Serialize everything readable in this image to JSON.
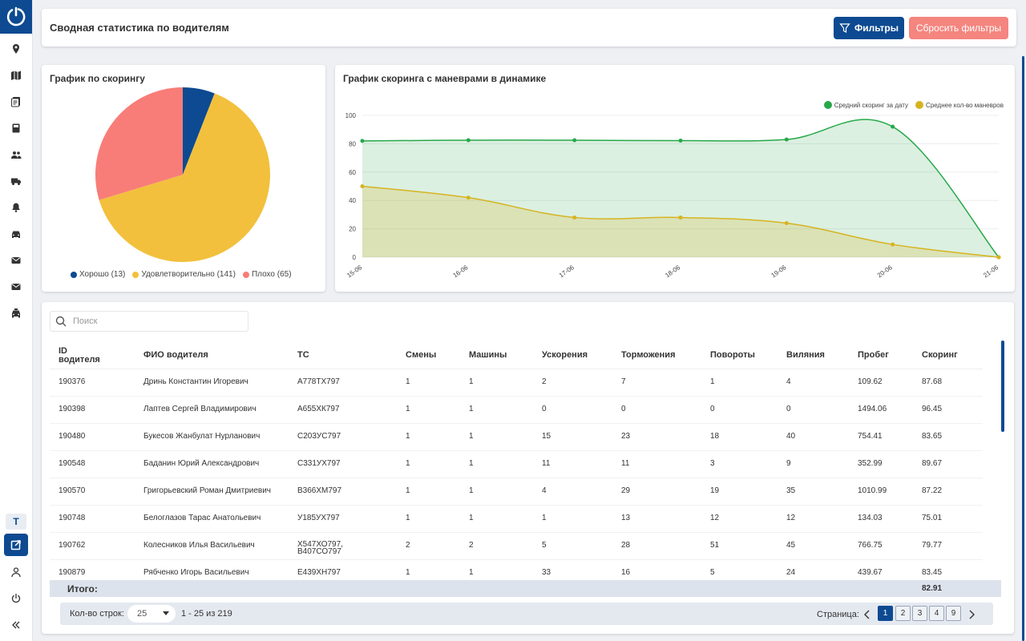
{
  "header": {
    "title": "Сводная статистика по водителям",
    "filter_label": "Фильтры",
    "reset_label": "Сбросить фильтры"
  },
  "sidebar": {
    "items": [
      "location-icon",
      "map-icon",
      "documents-icon",
      "book-icon",
      "users-icon",
      "truck-icon",
      "bell-icon",
      "car-icon",
      "mail-icon",
      "mail-icon",
      "taxi-icon"
    ],
    "tenant_letter": "T",
    "bottom_items": [
      "external-link-icon",
      "user-icon",
      "power-icon",
      "collapse-icon"
    ]
  },
  "pie": {
    "title": "График по скорингу",
    "legend": [
      "Хорошо (13)",
      "Удовлетворительно (141)",
      "Плохо (65)"
    ],
    "slices": [
      {
        "value": 13,
        "color": "#0d4a91"
      },
      {
        "value": 141,
        "color": "#f2c03c"
      },
      {
        "value": 65,
        "color": "#f87d78"
      }
    ]
  },
  "line": {
    "title": "График скоринга с маневрами в динамике",
    "legend": [
      "Средний скоринг за дату",
      "Среднее кол-во маневров"
    ]
  },
  "chart_data": [
    {
      "type": "pie",
      "title": "График по скорингу",
      "categories": [
        "Хорошо (13)",
        "Удовлетворительно (141)",
        "Плохо (65)"
      ],
      "values": [
        13,
        141,
        65
      ],
      "colors": [
        "#0d4a91",
        "#f2c03c",
        "#f87d78"
      ],
      "legend": "bottom"
    },
    {
      "type": "area",
      "title": "График скоринга с маневрами в динамике",
      "x": [
        "15-06",
        "16-06",
        "17-06",
        "18-06",
        "19-06",
        "20-06",
        "21-06"
      ],
      "series": [
        {
          "name": "Средний скоринг за дату",
          "values": [
            82,
            82.5,
            82.5,
            82.2,
            83,
            92,
            0
          ],
          "color": "#27a84a"
        },
        {
          "name": "Среднее кол-во маневров",
          "values": [
            50,
            42,
            28,
            28,
            24,
            9,
            0
          ],
          "color": "#d7b321"
        }
      ],
      "ylim": [
        0,
        100
      ],
      "yticks": [
        "0",
        "20",
        "40",
        "60",
        "80",
        "100"
      ],
      "grid": true,
      "legend": "top-right"
    }
  ],
  "table": {
    "search_placeholder": "Поиск",
    "columns": [
      "ID водителя",
      "ФИО водителя",
      "ТС",
      "Смены",
      "Машины",
      "Ускорения",
      "Торможения",
      "Повороты",
      "Виляния",
      "Пробег",
      "Скоринг"
    ],
    "rows": [
      [
        "190376",
        "Дринь Константин Игоревич",
        "А778ТХ797",
        "1",
        "1",
        "2",
        "7",
        "1",
        "4",
        "109.62",
        "87.68"
      ],
      [
        "190398",
        "Лаптев Сергей Владимирович",
        "А655ХК797",
        "1",
        "1",
        "0",
        "0",
        "0",
        "0",
        "1494.06",
        "96.45"
      ],
      [
        "190480",
        "Букесов Жанбулат Нурланович",
        "С203УС797",
        "1",
        "1",
        "15",
        "23",
        "18",
        "40",
        "754.41",
        "83.65"
      ],
      [
        "190548",
        "Баданин Юрий Александрович",
        "С331УХ797",
        "1",
        "1",
        "11",
        "11",
        "3",
        "9",
        "352.99",
        "89.67"
      ],
      [
        "190570",
        "Григорьевский Роман Дмитриевич",
        "В366ХМ797",
        "1",
        "1",
        "4",
        "29",
        "19",
        "35",
        "1010.99",
        "87.22"
      ],
      [
        "190748",
        "Белоглазов Тарас Анатольевич",
        "У185УХ797",
        "1",
        "1",
        "1",
        "13",
        "12",
        "12",
        "134.03",
        "75.01"
      ],
      [
        "190762",
        "Колесников Илья Васильевич",
        "Х547ХО797, В407СО797",
        "2",
        "2",
        "5",
        "28",
        "51",
        "45",
        "766.75",
        "79.77"
      ],
      [
        "190879",
        "Рябченко Игорь Васильевич",
        "Е439ХН797",
        "1",
        "1",
        "33",
        "16",
        "5",
        "24",
        "439.67",
        "83.45"
      ]
    ],
    "total_label": "Итого:",
    "total_score": "82.91",
    "rows_per_page_label": "Кол-во строк:",
    "rows_per_page": "25",
    "range": "1 - 25 из 219",
    "page_label": "Страница:",
    "pages": [
      "1",
      "2",
      "3",
      "4",
      "9"
    ],
    "current_page": "1"
  }
}
